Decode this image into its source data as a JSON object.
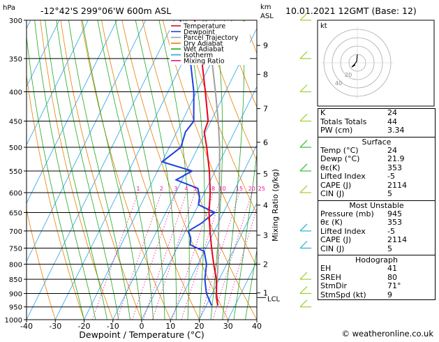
{
  "header": {
    "location": "-12°42'S  299°06'W  600m  ASL",
    "datetime": "10.01.2021  12GMT  (Base: 12)",
    "hpa_label": "hPa",
    "km_label": "km",
    "asl_label": "ASL"
  },
  "chart_data": {
    "type": "line",
    "title": "",
    "xlabel": "Dewpoint / Temperature (°C)",
    "ylabel_right": "Mixing Ratio (g/kg)",
    "xlim": [
      -40,
      40
    ],
    "pressure_range_hpa": [
      300,
      1000
    ],
    "y_scale": "log-pressure",
    "x_ticks": [
      "-40",
      "-30",
      "-20",
      "-10",
      "0",
      "10",
      "20",
      "30",
      "40"
    ],
    "pressure_ticks": [
      "300",
      "350",
      "400",
      "450",
      "500",
      "550",
      "600",
      "650",
      "700",
      "750",
      "800",
      "850",
      "900",
      "950",
      "1000"
    ],
    "km_ticks": [
      {
        "label": "9",
        "p": 332
      },
      {
        "label": "8",
        "p": 373
      },
      {
        "label": "7",
        "p": 428
      },
      {
        "label": "6",
        "p": 490
      },
      {
        "label": "5",
        "p": 556
      },
      {
        "label": "4",
        "p": 631
      },
      {
        "label": "3",
        "p": 712
      },
      {
        "label": "2",
        "p": 800
      },
      {
        "label": "1",
        "p": 898
      }
    ],
    "lcl_label": "LCL",
    "lcl_p": 915,
    "mixing_ratio_labels": [
      "1",
      "2",
      "3",
      "4",
      "5",
      "8",
      "10",
      "15",
      "20",
      "25"
    ],
    "legend": {
      "placement": "top-left",
      "entries": [
        {
          "name": "Temperature",
          "color": "#e8001c"
        },
        {
          "name": "Dewpoint",
          "color": "#1a3fe8"
        },
        {
          "name": "Parcel Trajectory",
          "color": "#a0a0a0"
        },
        {
          "name": "Dry Adiabat",
          "color": "#e87f00"
        },
        {
          "name": "Wet Adiabat",
          "color": "#1fa81f"
        },
        {
          "name": "Isotherm",
          "color": "#20a4e8"
        },
        {
          "name": "Mixing Ratio",
          "color": "#e8109c"
        }
      ]
    },
    "series": [
      {
        "name": "Temperature",
        "color": "#e8001c",
        "points": [
          [
            945,
            24
          ],
          [
            900,
            21.5
          ],
          [
            850,
            19
          ],
          [
            800,
            15.5
          ],
          [
            750,
            12
          ],
          [
            700,
            8.5
          ],
          [
            650,
            5
          ],
          [
            600,
            2
          ],
          [
            550,
            -2
          ],
          [
            500,
            -7
          ],
          [
            470,
            -10.5
          ],
          [
            450,
            -11
          ],
          [
            400,
            -17
          ],
          [
            350,
            -24
          ],
          [
            300,
            -33
          ]
        ]
      },
      {
        "name": "Dewpoint",
        "color": "#1a3fe8",
        "points": [
          [
            945,
            21.9
          ],
          [
            900,
            18
          ],
          [
            850,
            15
          ],
          [
            800,
            13
          ],
          [
            760,
            10
          ],
          [
            740,
            4
          ],
          [
            720,
            3
          ],
          [
            700,
            1
          ],
          [
            680,
            4
          ],
          [
            650,
            7
          ],
          [
            630,
            0
          ],
          [
            610,
            -1
          ],
          [
            590,
            -3
          ],
          [
            570,
            -12
          ],
          [
            550,
            -8
          ],
          [
            530,
            -20
          ],
          [
            500,
            -16
          ],
          [
            470,
            -17
          ],
          [
            450,
            -16
          ],
          [
            400,
            -21
          ],
          [
            350,
            -28
          ],
          [
            300,
            -38
          ]
        ]
      },
      {
        "name": "Parcel Trajectory",
        "color": "#a0a0a0",
        "points": [
          [
            945,
            24
          ],
          [
            915,
            22
          ],
          [
            850,
            19.3
          ],
          [
            800,
            17
          ],
          [
            750,
            14.3
          ],
          [
            700,
            11.5
          ],
          [
            650,
            8.5
          ],
          [
            600,
            5.2
          ],
          [
            550,
            1.5
          ],
          [
            500,
            -2.5
          ],
          [
            450,
            -7.5
          ],
          [
            400,
            -13.5
          ],
          [
            350,
            -20.5
          ],
          [
            300,
            -29
          ]
        ]
      }
    ],
    "hodograph": {
      "label": "kt",
      "ring_labels": [
        "20",
        "40"
      ],
      "barb_color": "#6a6a6a"
    }
  },
  "indices": [
    {
      "label": "K",
      "value": "24"
    },
    {
      "label": "Totals Totals",
      "value": "44"
    },
    {
      "label": "PW (cm)",
      "value": "3.34"
    }
  ],
  "surface": {
    "title": "Surface",
    "rows": [
      {
        "label": "Temp (°C)",
        "value": "24"
      },
      {
        "label": "Dewp (°C)",
        "value": "21.9"
      },
      {
        "label": "θε(K)",
        "value": "353"
      },
      {
        "label": "Lifted Index",
        "value": "-5"
      },
      {
        "label": "CAPE (J)",
        "value": "2114"
      },
      {
        "label": "CIN (J)",
        "value": "5"
      }
    ]
  },
  "most_unstable": {
    "title": "Most Unstable",
    "rows": [
      {
        "label": "Pressure (mb)",
        "value": "945"
      },
      {
        "label": "θε (K)",
        "value": "353"
      },
      {
        "label": "Lifted Index",
        "value": "-5"
      },
      {
        "label": "CAPE (J)",
        "value": "2114"
      },
      {
        "label": "CIN (J)",
        "value": "5"
      }
    ]
  },
  "hodograph_table": {
    "title": "Hodograph",
    "rows": [
      {
        "label": "EH",
        "value": "41"
      },
      {
        "label": "SREH",
        "value": "80"
      },
      {
        "label": "StmDir",
        "value": "71°"
      },
      {
        "label": "StmSpd (kt)",
        "value": "9"
      }
    ]
  },
  "footer": {
    "credit": "© weatheronline.co.uk"
  }
}
